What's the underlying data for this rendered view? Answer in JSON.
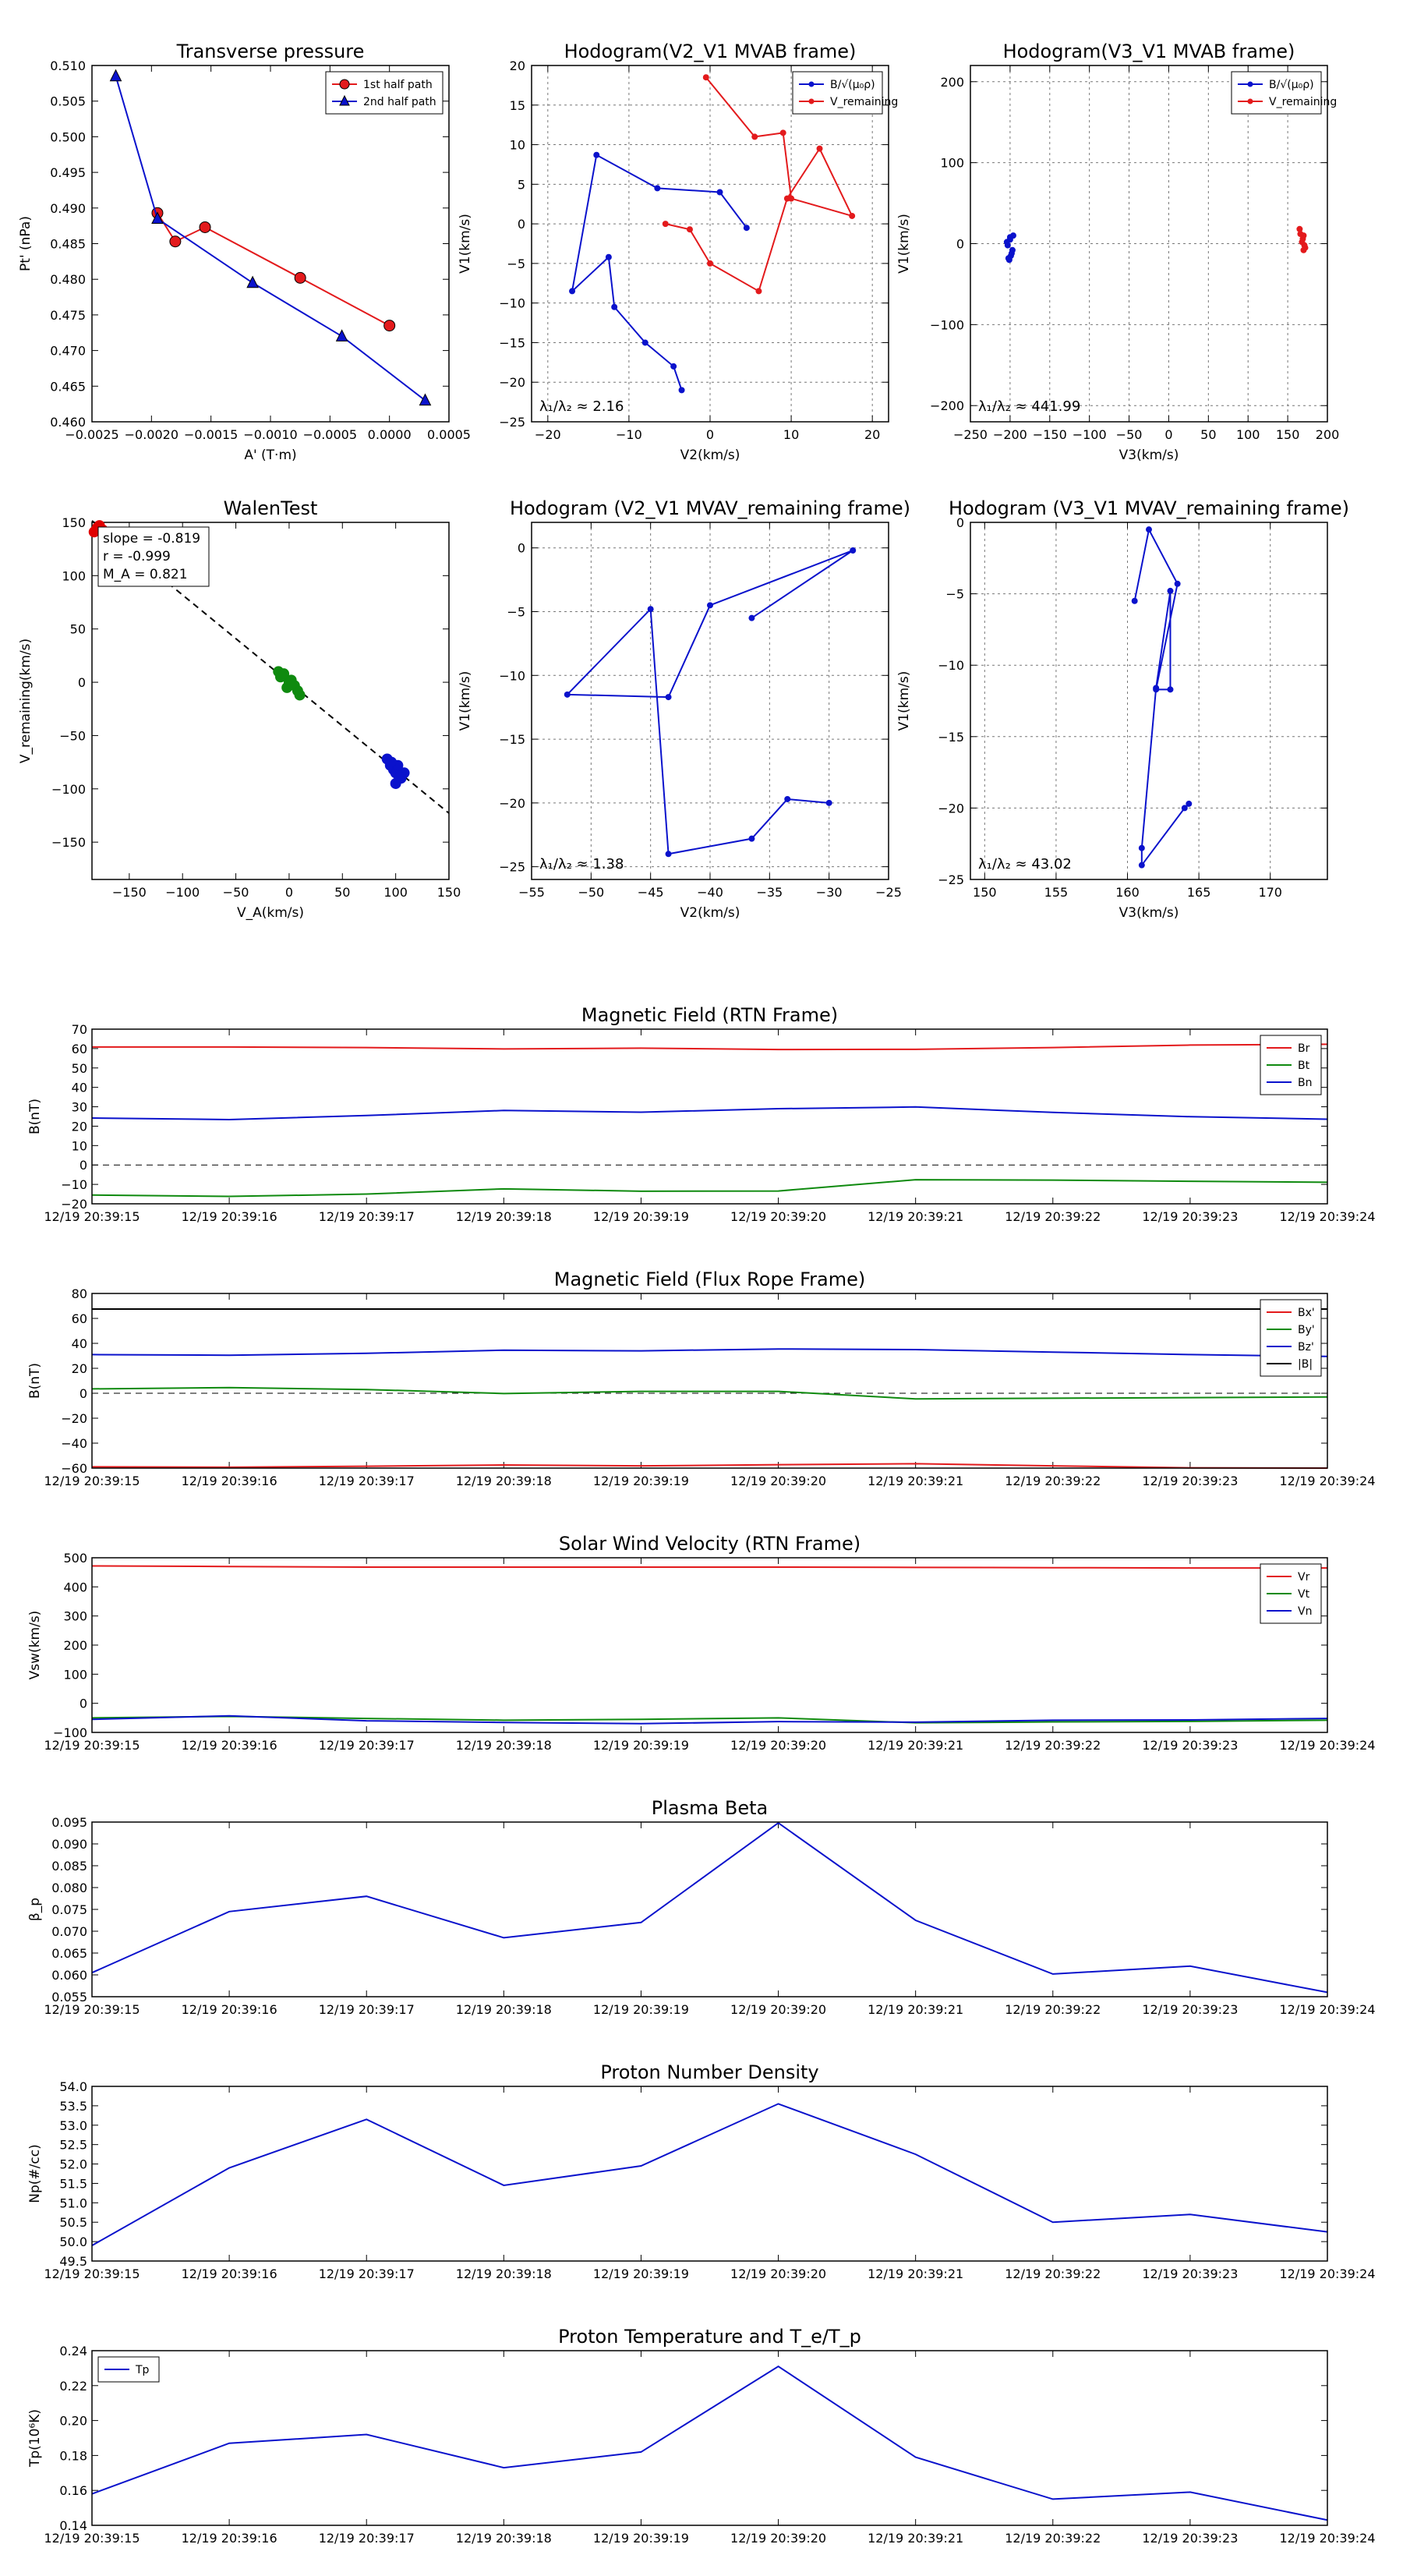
{
  "colors": {
    "red": "#e31a1c",
    "blue": "#0a12cc",
    "green": "#0f8a0f",
    "black": "#000000",
    "marker_red": "#e00000"
  },
  "chart_data": [
    {
      "id": "pt",
      "type": "line",
      "title": "Transverse pressure",
      "xlabel": "A' (T·m)",
      "ylabel": "Pt' (nPa)",
      "xlim": [
        -0.0025,
        0.0005
      ],
      "ylim": [
        0.46,
        0.51
      ],
      "xticks": [
        "-0.0025",
        "-0.0020",
        "-0.0015",
        "-0.0010",
        "-0.0005",
        "0.0000",
        "0.0005"
      ],
      "yticks": [
        "0.460",
        "0.465",
        "0.470",
        "0.475",
        "0.480",
        "0.485",
        "0.490",
        "0.495",
        "0.500",
        "0.505",
        "0.510"
      ],
      "grid": false,
      "legend": "top-right",
      "series": [
        {
          "name": "1st half path",
          "color": "#e31a1c",
          "marker": "circle",
          "x": [
            0.0,
            -0.00075,
            -0.00155,
            -0.0018,
            -0.00195
          ],
          "y": [
            0.4735,
            0.4802,
            0.4873,
            0.4853,
            0.4893
          ]
        },
        {
          "name": "2nd half path",
          "color": "#0a12cc",
          "marker": "triangle",
          "x": [
            -0.0023,
            -0.00195,
            -0.00115,
            -0.0004,
            0.0003
          ],
          "y": [
            0.5085,
            0.4885,
            0.4795,
            0.472,
            0.463
          ]
        }
      ]
    },
    {
      "id": "h21",
      "type": "line",
      "title": "Hodogram(V2_V1 MVAB frame)",
      "xlabel": "V2(km/s)",
      "ylabel": "V1(km/s)",
      "xlim": [
        -22,
        22
      ],
      "ylim": [
        -25,
        20
      ],
      "xticks": [
        "-20",
        "-10",
        "0",
        "10",
        "20"
      ],
      "yticks": [
        "-25",
        "-20",
        "-15",
        "-10",
        "-5",
        "0",
        "5",
        "10",
        "15",
        "20"
      ],
      "grid": true,
      "legend": "top-right",
      "annotation": "λ₁/λ₂ ≈ 2.16",
      "series": [
        {
          "name": "B/√(μ₀ρ)",
          "color": "#0a12cc",
          "marker": "dot",
          "x": [
            4.5,
            1.2,
            -6.5,
            -14,
            -17,
            -12.5,
            -11.8,
            -8,
            -4.5,
            -3.5
          ],
          "y": [
            -0.5,
            4,
            4.5,
            8.7,
            -8.5,
            -4.2,
            -10.5,
            -15,
            -18,
            -21
          ]
        },
        {
          "name": "V_remaining",
          "color": "#e31a1c",
          "marker": "dot",
          "x": [
            -5.5,
            -2.5,
            0,
            6,
            9.5,
            13.5,
            17.5,
            10,
            9,
            5.5,
            -0.5
          ],
          "y": [
            0,
            -0.7,
            -5,
            -8.5,
            3.2,
            9.5,
            1,
            3.2,
            11.5,
            11,
            18.5
          ]
        }
      ]
    },
    {
      "id": "h31",
      "type": "scatter",
      "title": "Hodogram(V3_V1 MVAB frame)",
      "xlabel": "V3(km/s)",
      "ylabel": "V1(km/s)",
      "xlim": [
        -250,
        200
      ],
      "ylim": [
        -220,
        220
      ],
      "xticks": [
        "-250",
        "-200",
        "-150",
        "-100",
        "-50",
        "0",
        "50",
        "100",
        "150",
        "200"
      ],
      "yticks": [
        "-200",
        "-100",
        "0",
        "100",
        "200"
      ],
      "grid": true,
      "legend": "top-right",
      "annotation": "λ₁/λ₂ ≈ 441.99",
      "series": [
        {
          "name": "B/√(μ₀ρ)",
          "color": "#0a12cc",
          "marker": "dot",
          "x": [
            -200,
            -196,
            -203,
            -199,
            -201,
            -197,
            -204,
            -198,
            -200,
            -202
          ],
          "y": [
            5,
            10,
            -2,
            -15,
            -20,
            -8,
            2,
            -12,
            8,
            -18
          ]
        },
        {
          "name": "V_remaining",
          "color": "#e31a1c",
          "marker": "dot",
          "x": [
            165,
            170,
            168,
            172,
            166,
            170,
            169,
            171
          ],
          "y": [
            18,
            10,
            2,
            -5,
            12,
            -8,
            6,
            -2
          ]
        }
      ]
    },
    {
      "id": "walen",
      "type": "scatter",
      "title": "WalenTest",
      "xlabel": "V_A(km/s)",
      "ylabel": "V_remaining(km/s)",
      "xlim": [
        -185,
        150
      ],
      "ylim": [
        -185,
        150
      ],
      "xticks": [
        "-150",
        "-100",
        "-50",
        "0",
        "50",
        "100",
        "150"
      ],
      "yticks": [
        "-150",
        "-100",
        "-50",
        "0",
        "50",
        "100",
        "150"
      ],
      "grid": false,
      "stats": [
        "slope = -0.819",
        "r = -0.999",
        "M_A = 0.821"
      ],
      "fit_line": {
        "slope": -0.819,
        "intercept": 0
      },
      "series": [
        {
          "name": "red",
          "color": "#e00000",
          "x": [
            -180,
            -175,
            -178,
            -183
          ],
          "y": [
            145,
            143,
            147,
            141
          ]
        },
        {
          "name": "green",
          "color": "#0f8a0f",
          "x": [
            -10,
            -8,
            -5,
            0,
            2,
            5,
            8,
            10,
            -2,
            3
          ],
          "y": [
            10,
            5,
            8,
            0,
            2,
            -3,
            -8,
            -12,
            -5,
            -2
          ]
        },
        {
          "name": "blue",
          "color": "#0a12cc",
          "x": [
            92,
            95,
            98,
            100,
            102,
            105,
            108,
            100,
            96,
            103
          ],
          "y": [
            -72,
            -78,
            -82,
            -85,
            -78,
            -90,
            -85,
            -95,
            -75,
            -88
          ]
        }
      ]
    },
    {
      "id": "h21r",
      "type": "line",
      "title": "Hodogram (V2_V1 MVAV_remaining frame)",
      "xlabel": "V2(km/s)",
      "ylabel": "V1(km/s)",
      "xlim": [
        -55,
        -25
      ],
      "ylim": [
        -26,
        2
      ],
      "xticks": [
        "-55",
        "-50",
        "-45",
        "-40",
        "-35",
        "-30",
        "-25"
      ],
      "yticks": [
        "-25",
        "-20",
        "-15",
        "-10",
        "-5",
        "0"
      ],
      "grid": true,
      "annotation": "λ₁/λ₂ ≈ 1.38",
      "series": [
        {
          "name": "path",
          "color": "#0a12cc",
          "marker": "dot",
          "x": [
            -36.5,
            -28,
            -40,
            -43.5,
            -52,
            -45,
            -43.5,
            -36.5,
            -33.5,
            -30
          ],
          "y": [
            -5.5,
            -0.2,
            -4.5,
            -11.7,
            -11.5,
            -4.8,
            -24,
            -22.8,
            -19.7,
            -20
          ]
        }
      ]
    },
    {
      "id": "h31r",
      "type": "line",
      "title": "Hodogram (V3_V1 MVAV_remaining frame)",
      "xlabel": "V3(km/s)",
      "ylabel": "V1(km/s)",
      "xlim": [
        149,
        174
      ],
      "ylim": [
        -25,
        0
      ],
      "xticks": [
        "150",
        "155",
        "160",
        "165",
        "170"
      ],
      "yticks": [
        "-25",
        "-20",
        "-15",
        "-10",
        "-5",
        "0"
      ],
      "grid": true,
      "annotation": "λ₁/λ₂ ≈ 43.02",
      "series": [
        {
          "name": "path",
          "color": "#0a12cc",
          "marker": "dot",
          "x": [
            160.5,
            161.5,
            163.5,
            162,
            163,
            163,
            162,
            161,
            161,
            164,
            164.3
          ],
          "y": [
            -5.5,
            -0.5,
            -4.3,
            -11.7,
            -11.7,
            -4.8,
            -11.6,
            -22.8,
            -24,
            -20,
            -19.7
          ]
        }
      ]
    },
    {
      "id": "brtn",
      "type": "line",
      "title": "Magnetic Field (RTN Frame)",
      "ylabel": "B(nT)",
      "ylim": [
        -20,
        70
      ],
      "yticks": [
        "-20",
        "-10",
        "0",
        "10",
        "20",
        "30",
        "40",
        "50",
        "60",
        "70"
      ],
      "zero_line": true,
      "legend": "top-right",
      "series": [
        {
          "name": "Br",
          "color": "#e31a1c",
          "values": [
            60.8,
            60.8,
            60.5,
            59.8,
            60.2,
            59.5,
            59.6,
            60.5,
            61.8,
            62.2
          ]
        },
        {
          "name": "Bt",
          "color": "#0f8a0f",
          "values": [
            -15.5,
            -16.2,
            -15.0,
            -12.3,
            -13.5,
            -13.4,
            -7.6,
            -7.8,
            -8.4,
            -8.9
          ]
        },
        {
          "name": "Bn",
          "color": "#0a12cc",
          "values": [
            24.2,
            23.4,
            25.5,
            28.1,
            27.2,
            29.0,
            29.9,
            27.1,
            24.9,
            23.6
          ]
        }
      ]
    },
    {
      "id": "bfr",
      "type": "line",
      "title": "Magnetic Field (Flux Rope Frame)",
      "ylabel": "B(nT)",
      "ylim": [
        -60,
        80
      ],
      "yticks": [
        "-60",
        "-40",
        "-20",
        "0",
        "20",
        "40",
        "60",
        "80"
      ],
      "zero_line": true,
      "legend": "top-right",
      "series": [
        {
          "name": "Bx'",
          "color": "#e31a1c",
          "values": [
            -59,
            -59.3,
            -58.5,
            -57.5,
            -58.2,
            -57.3,
            -56.5,
            -58.2,
            -59.8,
            -60
          ]
        },
        {
          "name": "By'",
          "color": "#0f8a0f",
          "values": [
            3.5,
            4.5,
            3.0,
            -0.2,
            1.5,
            1.5,
            -4.5,
            -4,
            -3.5,
            -3
          ]
        },
        {
          "name": "Bz'",
          "color": "#0a12cc",
          "values": [
            31,
            30.5,
            32,
            34.5,
            34,
            35.5,
            35,
            33,
            31,
            29.5
          ]
        },
        {
          "name": "|B|",
          "color": "#000000",
          "values": [
            67.5,
            67.5,
            67.5,
            67.5,
            67.5,
            67.5,
            67.5,
            67.5,
            67.5,
            67.5
          ]
        }
      ]
    },
    {
      "id": "vsw",
      "type": "line",
      "title": "Solar Wind Velocity (RTN Frame)",
      "ylabel": "Vsw(km/s)",
      "ylim": [
        -100,
        500
      ],
      "yticks": [
        "-100",
        "0",
        "100",
        "200",
        "300",
        "400",
        "500"
      ],
      "zero_line": false,
      "legend": "top-right",
      "series": [
        {
          "name": "Vr",
          "color": "#e31a1c",
          "values": [
            472,
            470,
            468,
            468,
            468,
            468,
            467,
            466,
            465,
            465
          ]
        },
        {
          "name": "Vt",
          "color": "#0f8a0f",
          "values": [
            -50,
            -45,
            -52,
            -58,
            -55,
            -50,
            -67,
            -64,
            -62,
            -58
          ]
        },
        {
          "name": "Vn",
          "color": "#0a12cc",
          "values": [
            -55,
            -43,
            -60,
            -66,
            -70,
            -63,
            -65,
            -58,
            -57,
            -52
          ]
        }
      ]
    },
    {
      "id": "beta",
      "type": "line",
      "title": "Plasma Beta",
      "ylabel": "β_p",
      "ylim": [
        0.055,
        0.095
      ],
      "yticks": [
        "0.055",
        "0.060",
        "0.065",
        "0.070",
        "0.075",
        "0.080",
        "0.085",
        "0.090",
        "0.095"
      ],
      "series": [
        {
          "name": "beta",
          "color": "#0a12cc",
          "values": [
            0.0605,
            0.0745,
            0.078,
            0.0685,
            0.072,
            0.0948,
            0.0725,
            0.0602,
            0.062,
            0.056
          ]
        }
      ]
    },
    {
      "id": "np",
      "type": "line",
      "title": "Proton Number Density",
      "ylabel": "Np(#/cc)",
      "ylim": [
        49.5,
        54.0
      ],
      "yticks": [
        "49.5",
        "50.0",
        "50.5",
        "51.0",
        "51.5",
        "52.0",
        "52.5",
        "53.0",
        "53.5",
        "54.0"
      ],
      "series": [
        {
          "name": "Np",
          "color": "#0a12cc",
          "values": [
            49.9,
            51.9,
            53.15,
            51.45,
            51.95,
            53.55,
            52.25,
            50.5,
            50.7,
            50.25
          ]
        }
      ]
    },
    {
      "id": "tp",
      "type": "line",
      "title": "Proton Temperature and T_e/T_p",
      "ylabel": "Tp(10⁶K)",
      "ylim": [
        0.14,
        0.24
      ],
      "yticks": [
        "0.14",
        "0.16",
        "0.18",
        "0.20",
        "0.22",
        "0.24"
      ],
      "legend": "top-left",
      "series": [
        {
          "name": "Tp",
          "color": "#0a12cc",
          "values": [
            0.158,
            0.187,
            0.192,
            0.173,
            0.182,
            0.231,
            0.179,
            0.155,
            0.159,
            0.143
          ]
        }
      ]
    }
  ],
  "time_ticks": [
    "12/19 20:39:15",
    "12/19 20:39:16",
    "12/19 20:39:17",
    "12/19 20:39:18",
    "12/19 20:39:19",
    "12/19 20:39:20",
    "12/19 20:39:21",
    "12/19 20:39:22",
    "12/19 20:39:23",
    "12/19 20:39:24"
  ]
}
